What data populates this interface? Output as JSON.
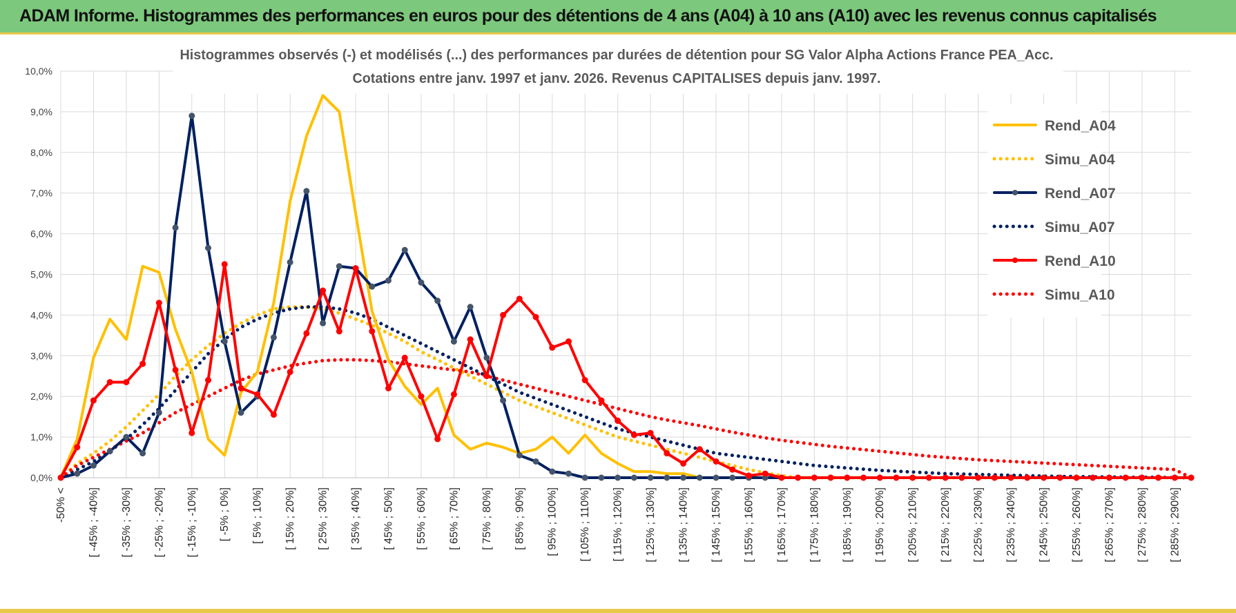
{
  "header": {
    "title": "ADAM Informe. Histogrammes des performances en euros pour des détentions de 4 ans (A04) à 10 ans (A10) avec les revenus connus capitalisés"
  },
  "colors": {
    "a04": "#ffc000",
    "a07": "#002060",
    "a10": "#ff0000",
    "header_bg": "#7cc87c",
    "marker_a07": "#44546a"
  },
  "chart_data": {
    "type": "line",
    "title": "Histogrammes observés (-) et modélisés (...) des performances par durées de détention pour SG Valor Alpha Actions France PEA_Acc.",
    "subtitle": "Cotations entre janv. 1997 et janv. 2026. Revenus CAPITALISES depuis janv. 1997.",
    "xlabel": "",
    "ylabel": "",
    "ylim": [
      0,
      10
    ],
    "y_ticks": [
      "0,0%",
      "1,0%",
      "2,0%",
      "3,0%",
      "4,0%",
      "5,0%",
      "6,0%",
      "7,0%",
      "8,0%",
      "9,0%",
      "10,0%"
    ],
    "grid": true,
    "legend_position": "right",
    "categories": [
      "-50% <",
      "[ -50% ; -45%]",
      "[ -45% ; -40%]",
      "[ -40% ; -35%]",
      "[ -35% ; -30%]",
      "[ -30% ; -25%]",
      "[ -25% ; -20%]",
      "[ -20% ; -15%]",
      "[ -15% ; -10%]",
      "[ -10% ; -5%]",
      "[ -5% ; 0%]",
      "[ 0% ; 5%]",
      "[ 5% ; 10%]",
      "[ 10% ; 15%]",
      "[ 15% ; 20%]",
      "[ 20% ; 25%]",
      "[ 25% ; 30%]",
      "[ 30% ; 35%]",
      "[ 35% ; 40%]",
      "[ 40% ; 45%]",
      "[ 45% ; 50%]",
      "[ 50% ; 55%]",
      "[ 55% ; 60%]",
      "[ 60% ; 65%]",
      "[ 65% ; 70%]",
      "[ 70% ; 75%]",
      "[ 75% ; 80%]",
      "[ 80% ; 85%]",
      "[ 85% ; 90%]",
      "[ 90% ; 95%]",
      "[ 95% ; 100%]",
      "[ 100% ; 105%]",
      "[ 105% ; 110%]",
      "[ 110% ; 115%]",
      "[ 115% ; 120%]",
      "[ 120% ; 125%]",
      "[ 125% ; 130%]",
      "[ 130% ; 135%]",
      "[ 135% ; 140%]",
      "[ 140% ; 145%]",
      "[ 145% ; 150%]",
      "[ 150% ; 155%]",
      "[ 155% ; 160%]",
      "[ 160% ; 165%]",
      "[ 165% ; 170%]",
      "[ 170% ; 175%]",
      "[ 175% ; 180%]",
      "[ 180% ; 185%]",
      "[ 185% ; 190%]",
      "[ 190% ; 195%]",
      "[ 195% ; 200%]",
      "[ 200% ; 205%]",
      "[ 205% ; 210%]",
      "[ 210% ; 215%]",
      "[ 215% ; 220%]",
      "[ 220% ; 225%]",
      "[ 225% ; 230%]",
      "[ 230% ; 235%]",
      "[ 235% ; 240%]",
      "[ 240% ; 245%]",
      "[ 245% ; 250%]",
      "[ 250% ; 255%]",
      "[ 255% ; 260%]",
      "[ 260% ; 265%]",
      "[ 265% ; 270%]",
      "[ 270% ; 275%]",
      "[ 275% ; 280%]",
      "[ 280% ; 285%]",
      "[ 285% ; 290%]",
      "[ 290% ; 295%]"
    ],
    "visible_tick_labels": [
      "-50% <",
      "[ -45% ; -40%]",
      "[ -35% ; -30%]",
      "[ -25% ; -20%]",
      "[ -15% ; -10%]",
      "[ -5% ; 0%]",
      "[ 5% ; 10%]",
      "[ 15% ; 20%]",
      "[ 25% ; 30%]",
      "[ 35% ; 40%]",
      "[ 45% ; 50%]",
      "[ 55% ; 60%]",
      "[ 65% ; 70%]",
      "[ 75% ; 80%]",
      "[ 85% ; 90%]",
      "[ 95% ; 100%]",
      "[ 105% ; 110%]",
      "[ 115% ; 120%]",
      "[ 125% ; 130%]",
      "[ 135% ; 140%]",
      "[ 145% ; 150%]",
      "[ 155% ; 160%]",
      "[ 165% ; 170%]",
      "[ 175% ; 180%]",
      "[ 185% ; 190%]",
      "[ 195% ; 200%]",
      "[ 205% ; 210%]",
      "[ 215% ; 220%]",
      "[ 225% ; 230%]",
      "[ 235% ; 240%]",
      "[ 245% ; 250%]",
      "[ 255% ; 260%]",
      "[ 265% ; 270%]",
      "[ 275% ; 280%]",
      "[ 285% ; 290%]"
    ],
    "series": [
      {
        "name": "Rend_A04",
        "style": "solid",
        "markers": false,
        "color": "#ffc000",
        "values": [
          0,
          0.95,
          2.95,
          3.9,
          3.4,
          5.2,
          5.05,
          3.65,
          2.6,
          0.95,
          0.55,
          2.1,
          2.6,
          4.3,
          6.8,
          8.4,
          9.4,
          9.0,
          6.5,
          4.1,
          2.9,
          2.25,
          1.8,
          2.2,
          1.05,
          0.7,
          0.85,
          0.75,
          0.6,
          0.7,
          1.0,
          0.6,
          1.05,
          0.6,
          0.35,
          0.15,
          0.15,
          0.1,
          0.1,
          0.0,
          0,
          0,
          0,
          0,
          0,
          0,
          0,
          0,
          0,
          0,
          0,
          0,
          0,
          0,
          0,
          0,
          0,
          0,
          0,
          0,
          0,
          0,
          0,
          0,
          0,
          0,
          0,
          0,
          0,
          0
        ]
      },
      {
        "name": "Simu_A04",
        "style": "dotted",
        "markers": false,
        "color": "#ffc000",
        "values": [
          0.0,
          0.35,
          0.6,
          0.9,
          1.25,
          1.65,
          2.05,
          2.5,
          2.9,
          3.25,
          3.55,
          3.8,
          4.0,
          4.15,
          4.2,
          4.2,
          4.15,
          4.05,
          3.9,
          3.75,
          3.55,
          3.35,
          3.1,
          2.9,
          2.7,
          2.5,
          2.3,
          2.1,
          1.9,
          1.75,
          1.6,
          1.45,
          1.3,
          1.15,
          1.0,
          0.9,
          0.8,
          0.7,
          0.6,
          0.5,
          0.4,
          0.3,
          0.2,
          0.12,
          0.05,
          0.0,
          0,
          0,
          0,
          0,
          0,
          0,
          0,
          0,
          0,
          0,
          0,
          0,
          0,
          0,
          0,
          0,
          0,
          0,
          0,
          0,
          0,
          0,
          0,
          0
        ]
      },
      {
        "name": "Rend_A07",
        "style": "solid",
        "markers": true,
        "color": "#002060",
        "values": [
          0,
          0.1,
          0.3,
          0.65,
          1.0,
          0.6,
          1.6,
          6.15,
          8.9,
          5.65,
          3.35,
          1.6,
          2.0,
          3.45,
          5.3,
          7.05,
          3.8,
          5.2,
          5.15,
          4.7,
          4.85,
          5.6,
          4.8,
          4.35,
          3.35,
          4.2,
          2.95,
          1.9,
          0.55,
          0.4,
          0.15,
          0.1,
          0.0,
          0,
          0,
          0,
          0,
          0,
          0,
          0,
          0,
          0,
          0,
          0,
          0,
          0,
          0,
          0,
          0,
          0,
          0,
          0,
          0,
          0,
          0,
          0,
          0,
          0,
          0,
          0,
          0,
          0,
          0,
          0,
          0,
          0,
          0,
          0,
          0,
          0
        ]
      },
      {
        "name": "Simu_A07",
        "style": "dotted",
        "markers": false,
        "color": "#002060",
        "values": [
          0.0,
          0.2,
          0.4,
          0.65,
          0.95,
          1.3,
          1.7,
          2.15,
          2.6,
          3.05,
          3.4,
          3.7,
          3.9,
          4.05,
          4.15,
          4.2,
          4.2,
          4.15,
          4.05,
          3.9,
          3.7,
          3.5,
          3.3,
          3.1,
          2.9,
          2.7,
          2.5,
          2.3,
          2.1,
          1.95,
          1.8,
          1.65,
          1.5,
          1.35,
          1.2,
          1.1,
          1.0,
          0.9,
          0.8,
          0.7,
          0.6,
          0.55,
          0.5,
          0.45,
          0.4,
          0.35,
          0.3,
          0.27,
          0.24,
          0.21,
          0.18,
          0.16,
          0.14,
          0.12,
          0.1,
          0.09,
          0.08,
          0.07,
          0.06,
          0.05,
          0.04,
          0.03,
          0.03,
          0.02,
          0.02,
          0.01,
          0.01,
          0.01,
          0.0,
          0.0
        ]
      },
      {
        "name": "Rend_A10",
        "style": "solid",
        "markers": true,
        "color": "#ff0000",
        "values": [
          0,
          0.75,
          1.9,
          2.35,
          2.35,
          2.8,
          4.3,
          2.65,
          1.1,
          2.4,
          5.25,
          2.2,
          2.05,
          1.55,
          2.6,
          3.55,
          4.6,
          3.6,
          5.15,
          3.6,
          2.2,
          2.95,
          2.0,
          0.95,
          2.05,
          3.4,
          2.5,
          4.0,
          4.4,
          3.95,
          3.2,
          3.35,
          2.4,
          1.9,
          1.4,
          1.05,
          1.1,
          0.6,
          0.35,
          0.7,
          0.4,
          0.2,
          0.05,
          0.1,
          0,
          0,
          0,
          0,
          0,
          0,
          0,
          0,
          0,
          0,
          0,
          0,
          0,
          0,
          0,
          0,
          0,
          0,
          0,
          0,
          0,
          0,
          0,
          0,
          0,
          0
        ]
      },
      {
        "name": "Simu_A10",
        "style": "dotted",
        "markers": false,
        "color": "#ff0000",
        "values": [
          0.0,
          0.3,
          0.5,
          0.7,
          0.9,
          1.1,
          1.35,
          1.6,
          1.8,
          2.0,
          2.2,
          2.4,
          2.55,
          2.65,
          2.75,
          2.82,
          2.88,
          2.9,
          2.9,
          2.88,
          2.85,
          2.8,
          2.75,
          2.7,
          2.65,
          2.6,
          2.5,
          2.4,
          2.3,
          2.2,
          2.1,
          2.0,
          1.9,
          1.8,
          1.7,
          1.6,
          1.5,
          1.42,
          1.35,
          1.28,
          1.2,
          1.12,
          1.05,
          0.98,
          0.92,
          0.87,
          0.82,
          0.77,
          0.73,
          0.69,
          0.65,
          0.61,
          0.57,
          0.53,
          0.5,
          0.47,
          0.44,
          0.42,
          0.4,
          0.38,
          0.36,
          0.34,
          0.32,
          0.3,
          0.28,
          0.26,
          0.24,
          0.22,
          0.2,
          0.0
        ]
      }
    ]
  }
}
